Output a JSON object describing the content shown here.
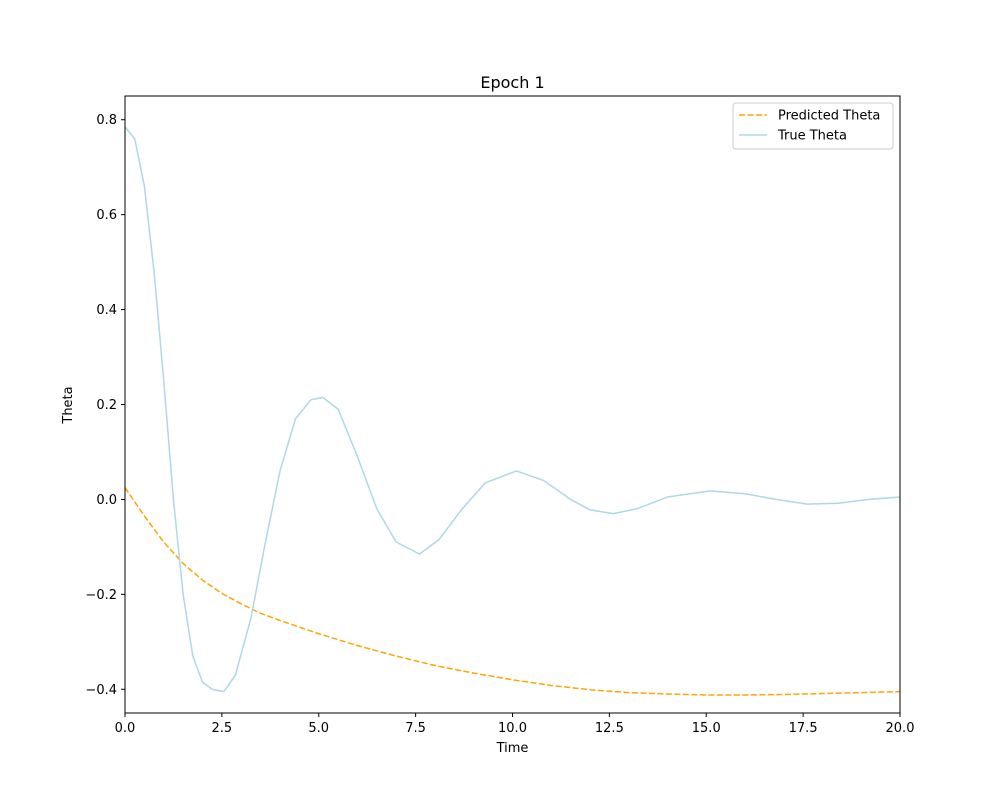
{
  "chart_data": {
    "type": "line",
    "title": "Epoch 1",
    "xlabel": "Time",
    "ylabel": "Theta",
    "xlim": [
      0,
      20
    ],
    "ylim": [
      -0.45,
      0.85
    ],
    "xticks": [
      0,
      2.5,
      5,
      7.5,
      10,
      12.5,
      15,
      17.5,
      20
    ],
    "xtick_labels": [
      "0.0",
      "2.5",
      "5.0",
      "7.5",
      "10.0",
      "12.5",
      "15.0",
      "17.5",
      "20.0"
    ],
    "yticks": [
      -0.4,
      -0.2,
      0.0,
      0.2,
      0.4,
      0.6,
      0.8
    ],
    "ytick_labels": [
      "−0.4",
      "−0.2",
      "0.0",
      "0.2",
      "0.4",
      "0.6",
      "0.8"
    ],
    "grid": false,
    "legend_position": "top-right",
    "series": [
      {
        "name": "Predicted Theta",
        "color": "#ffa500",
        "style": "dashed",
        "x": [
          0,
          0.5,
          1,
          1.5,
          2,
          2.5,
          3,
          3.5,
          4,
          5,
          6,
          7,
          8,
          9,
          10,
          11,
          12,
          13,
          14,
          15,
          16,
          17,
          18,
          19,
          20
        ],
        "y": [
          0.025,
          -0.035,
          -0.09,
          -0.135,
          -0.17,
          -0.198,
          -0.22,
          -0.24,
          -0.255,
          -0.283,
          -0.308,
          -0.33,
          -0.35,
          -0.366,
          -0.38,
          -0.392,
          -0.401,
          -0.407,
          -0.41,
          -0.412,
          -0.412,
          -0.411,
          -0.409,
          -0.407,
          -0.405
        ]
      },
      {
        "name": "True Theta",
        "color": "#add8e6",
        "style": "solid",
        "x": [
          0,
          0.25,
          0.5,
          0.75,
          1.0,
          1.25,
          1.5,
          1.75,
          2.0,
          2.25,
          2.55,
          2.85,
          3.25,
          3.6,
          4.0,
          4.4,
          4.8,
          5.1,
          5.5,
          6.0,
          6.5,
          7.0,
          7.6,
          8.1,
          8.7,
          9.3,
          10.1,
          10.8,
          11.5,
          12.0,
          12.6,
          13.2,
          14.0,
          15.1,
          16.0,
          16.8,
          17.6,
          18.4,
          19.2,
          20.0
        ],
        "y": [
          0.785,
          0.76,
          0.66,
          0.48,
          0.25,
          0.0,
          -0.2,
          -0.33,
          -0.385,
          -0.4,
          -0.405,
          -0.37,
          -0.25,
          -0.1,
          0.06,
          0.17,
          0.21,
          0.215,
          0.19,
          0.09,
          -0.02,
          -0.09,
          -0.115,
          -0.085,
          -0.02,
          0.035,
          0.06,
          0.04,
          0.0,
          -0.022,
          -0.03,
          -0.02,
          0.005,
          0.018,
          0.012,
          0.0,
          -0.01,
          -0.008,
          0.0,
          0.005
        ]
      }
    ]
  }
}
